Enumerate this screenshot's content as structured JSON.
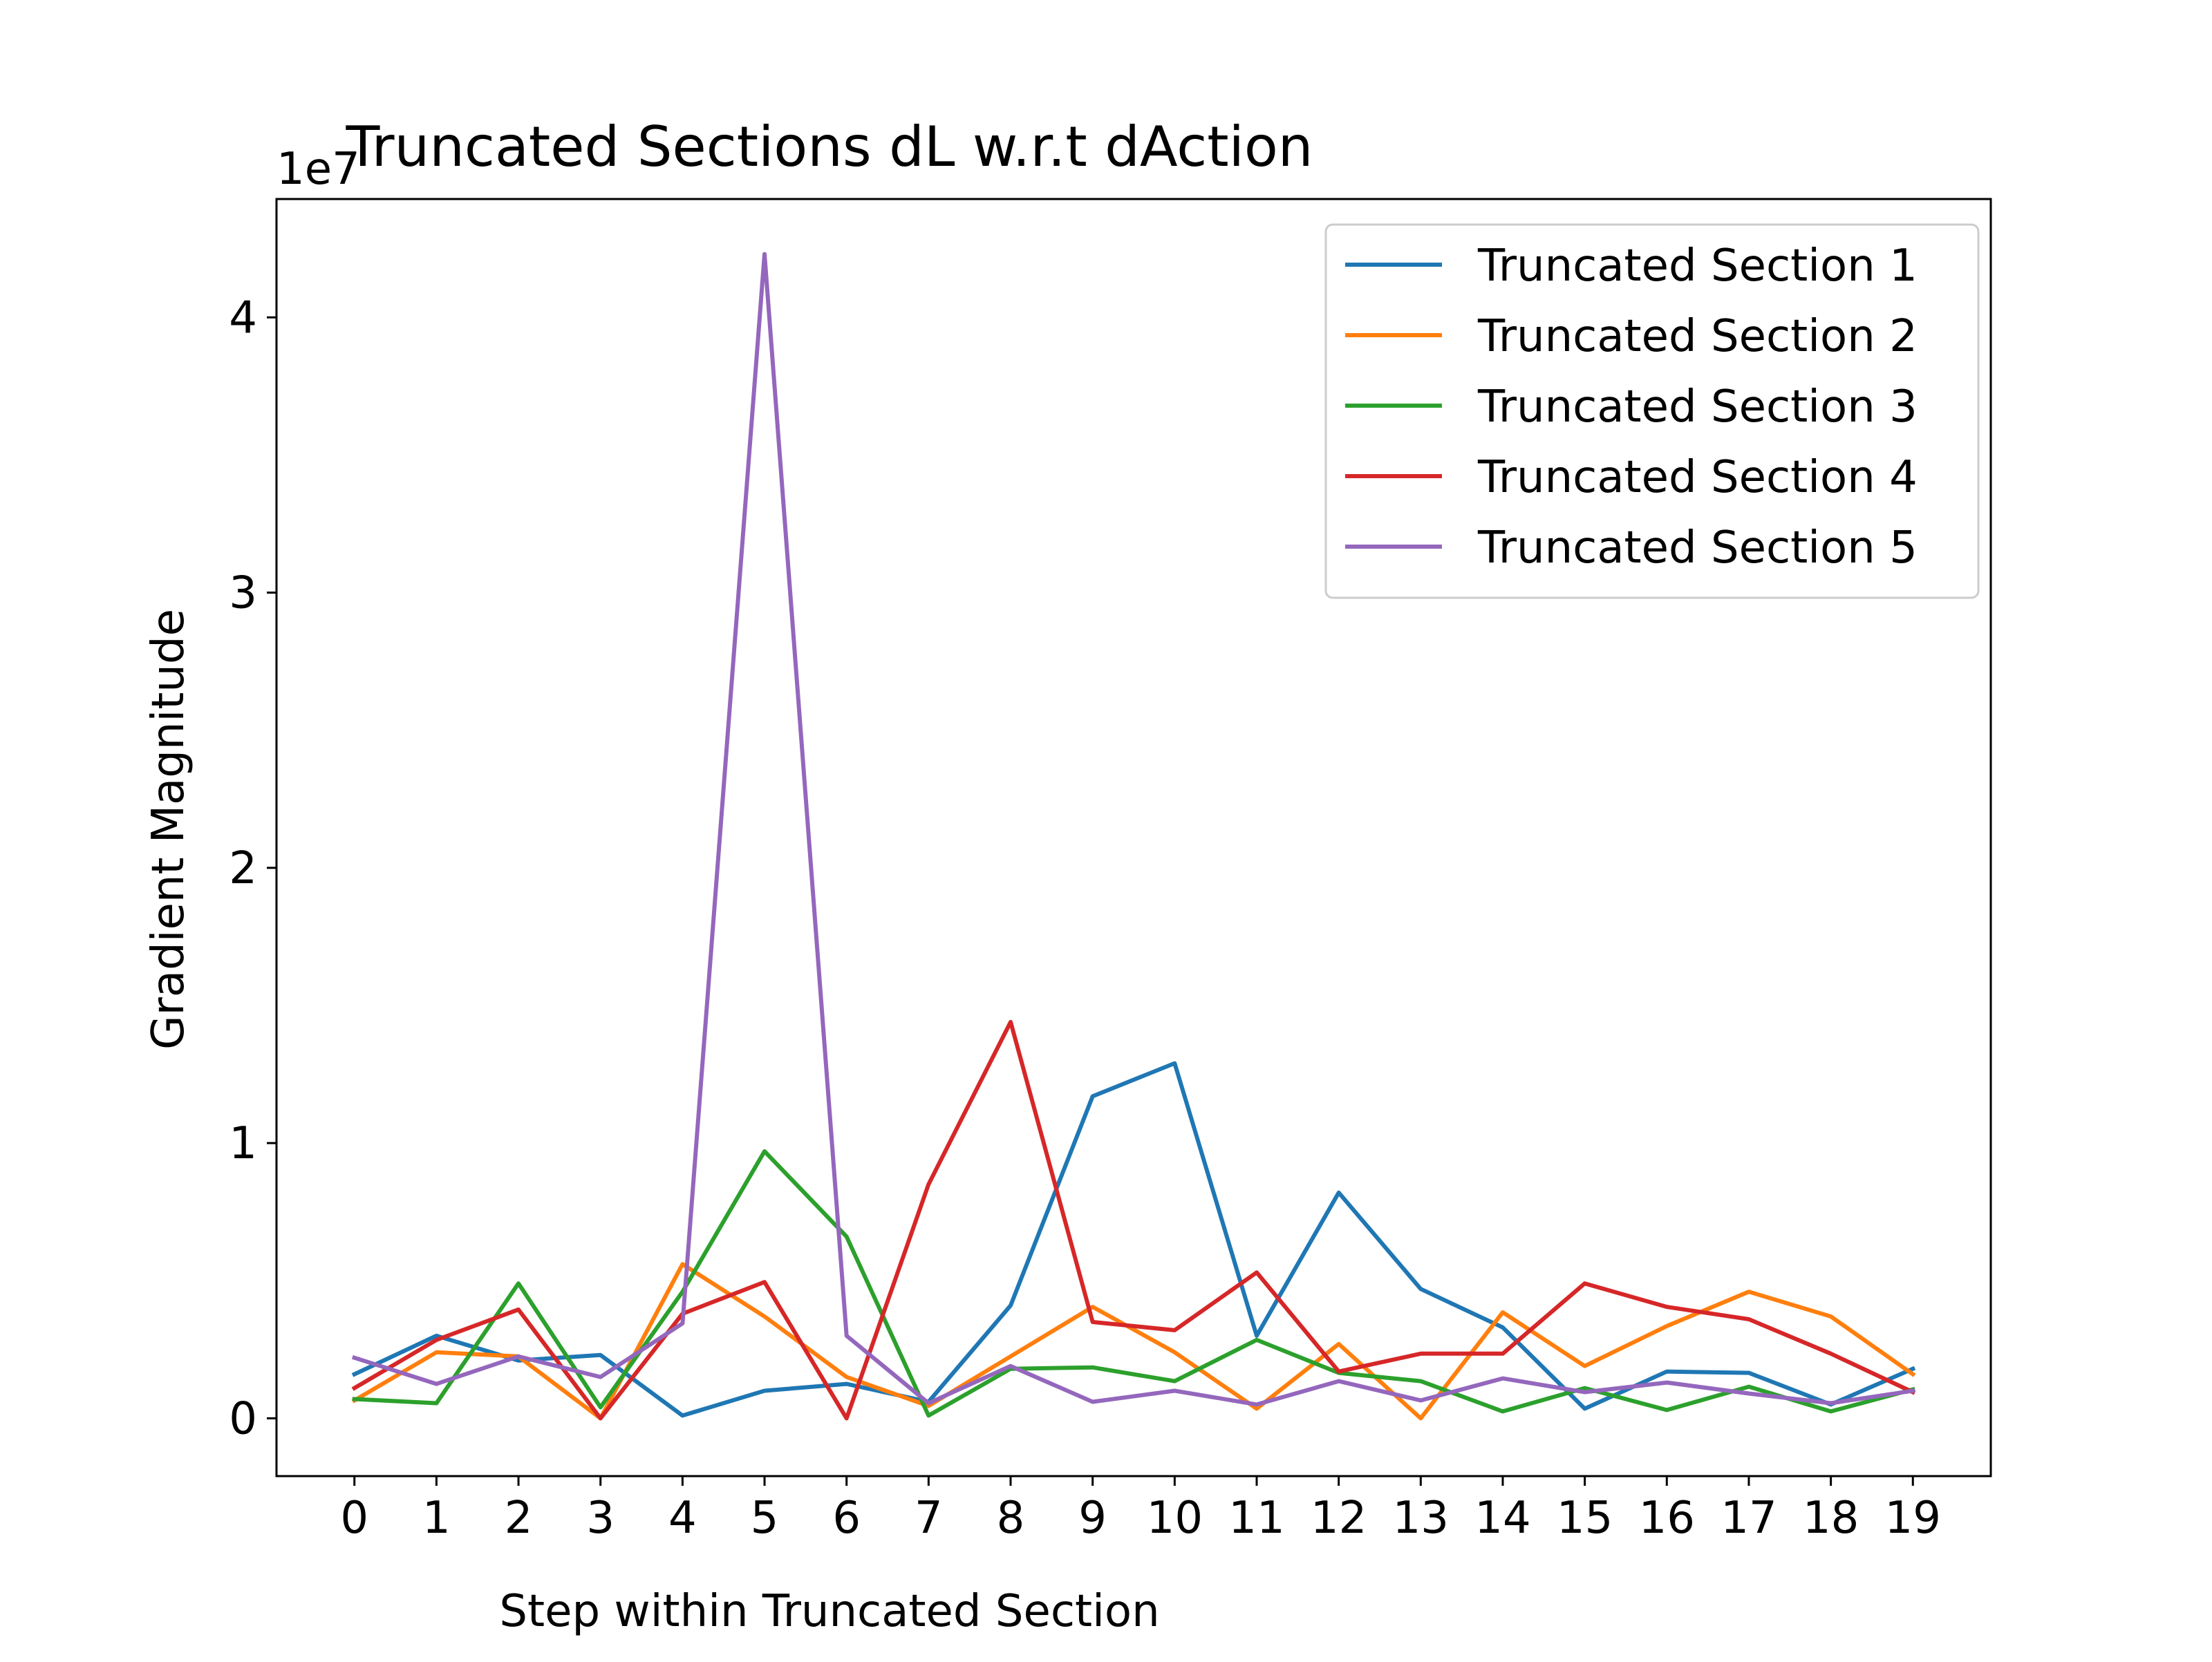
{
  "chart_data": {
    "type": "line",
    "title": "Truncated Sections dL w.r.t dAction",
    "xlabel": "Step within Truncated Section",
    "ylabel": "Gradient Magnitude",
    "y_offset_label": "1e7",
    "y_scale": 10000000,
    "x": [
      0,
      1,
      2,
      3,
      4,
      5,
      6,
      7,
      8,
      9,
      10,
      11,
      12,
      13,
      14,
      15,
      16,
      17,
      18,
      19
    ],
    "xlim": [
      -0.95,
      19.95
    ],
    "ylim": [
      -2100000,
      44300000
    ],
    "y_ticks": [
      0,
      10000000,
      20000000,
      30000000,
      40000000
    ],
    "y_tick_labels": [
      "0",
      "1",
      "2",
      "3",
      "4"
    ],
    "x_tick_labels": [
      "0",
      "1",
      "2",
      "3",
      "4",
      "5",
      "6",
      "7",
      "8",
      "9",
      "10",
      "11",
      "12",
      "13",
      "14",
      "15",
      "16",
      "17",
      "18",
      "19"
    ],
    "grid": false,
    "legend_position": "top-right",
    "series": [
      {
        "name": "Truncated Section 1",
        "color": "#1f77b4",
        "values": [
          1600000,
          3000000,
          2100000,
          2300000,
          100000,
          1000000,
          1250000,
          600000,
          4100000,
          11700000,
          12900000,
          3000000,
          8200000,
          4700000,
          3300000,
          350000,
          1700000,
          1650000,
          500000,
          1800000
        ]
      },
      {
        "name": "Truncated Section 2",
        "color": "#ff7f0e",
        "values": [
          650000,
          2400000,
          2250000,
          0,
          5600000,
          3700000,
          1500000,
          450000,
          2250000,
          4050000,
          2400000,
          350000,
          2700000,
          0,
          3850000,
          1900000,
          3350000,
          4600000,
          3700000,
          1600000
        ]
      },
      {
        "name": "Truncated Section 3",
        "color": "#2ca02c",
        "values": [
          700000,
          550000,
          4900000,
          400000,
          4600000,
          9700000,
          6600000,
          100000,
          1800000,
          1850000,
          1350000,
          2850000,
          1650000,
          1350000,
          250000,
          1100000,
          300000,
          1150000,
          250000,
          1050000
        ]
      },
      {
        "name": "Truncated Section 4",
        "color": "#d62728",
        "values": [
          1100000,
          2850000,
          3950000,
          0,
          3800000,
          4950000,
          0,
          8500000,
          14400000,
          3500000,
          3200000,
          5300000,
          1700000,
          2350000,
          2350000,
          4900000,
          4050000,
          3600000,
          2350000,
          950000
        ]
      },
      {
        "name": "Truncated Section 5",
        "color": "#9467bd",
        "values": [
          2200000,
          1250000,
          2250000,
          1500000,
          3450000,
          42300000,
          3000000,
          550000,
          1900000,
          600000,
          1000000,
          500000,
          1350000,
          650000,
          1450000,
          950000,
          1300000,
          900000,
          550000,
          1000000
        ]
      }
    ]
  }
}
